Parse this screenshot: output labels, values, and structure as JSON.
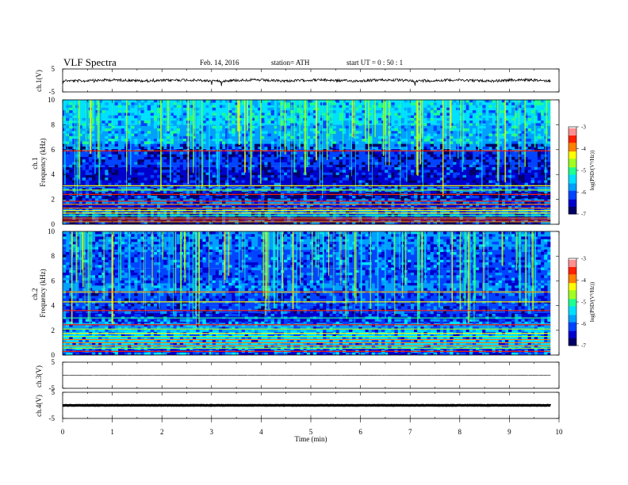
{
  "header": {
    "title": "VLF  Spectra",
    "date": "Feb. 14, 2016",
    "station": "station= ATH",
    "start": "start  UT =   0 : 50 : 1"
  },
  "chart_data": {
    "type": "heatmap",
    "xlabel": "Time  (min)",
    "xlim": [
      0,
      10
    ],
    "xticks": [
      "0",
      "1",
      "2",
      "3",
      "4",
      "5",
      "6",
      "7",
      "8",
      "9",
      "10"
    ],
    "data_end_min": 9.83,
    "panels": [
      {
        "kind": "timeseries",
        "ylabel": "ch.1(V)",
        "ylim": [
          -5,
          5
        ],
        "yticks": [
          "5",
          "-5"
        ],
        "baseline_v": 0,
        "noise": "high"
      },
      {
        "kind": "spectrogram",
        "ylabel": "ch.1\nFrequency  (kHz)",
        "ylim": [
          0,
          10
        ],
        "yticks": [
          "0",
          "2",
          "4",
          "6",
          "8",
          "10"
        ]
      },
      {
        "kind": "spectrogram",
        "ylabel": "ch.2\nFrequency  (kHz)",
        "ylim": [
          0,
          10
        ],
        "yticks": [
          "0",
          "2",
          "4",
          "6",
          "8",
          "10"
        ]
      },
      {
        "kind": "timeseries",
        "ylabel": "ch.3(V)",
        "ylim": [
          -5,
          5
        ],
        "yticks": [
          "5",
          "-5"
        ],
        "baseline_v": 0,
        "noise": "low"
      },
      {
        "kind": "timeseries",
        "ylabel": "ch.4(V)",
        "ylim": [
          -5,
          5
        ],
        "yticks": [
          "5",
          "-5"
        ],
        "baseline_v": 0,
        "noise": "thick"
      }
    ],
    "colorbars": [
      {
        "label": "log(PSD/(V²/Hz))",
        "range": [
          -7,
          -3
        ],
        "ticks": [
          "-3",
          "-4",
          "-5",
          "-6",
          "-7"
        ]
      },
      {
        "label": "log(PSD/(V²/Hz))",
        "range": [
          -7,
          -3
        ],
        "ticks": [
          "-3",
          "-4",
          "-5",
          "-6",
          "-7"
        ]
      }
    ],
    "colormap": [
      "#000066",
      "#0000cc",
      "#0044ff",
      "#00a0ff",
      "#00e0ff",
      "#20ff90",
      "#a0ff20",
      "#ffff00",
      "#ff8000",
      "#ff2000",
      "#ff9090",
      "#ffffff"
    ]
  }
}
